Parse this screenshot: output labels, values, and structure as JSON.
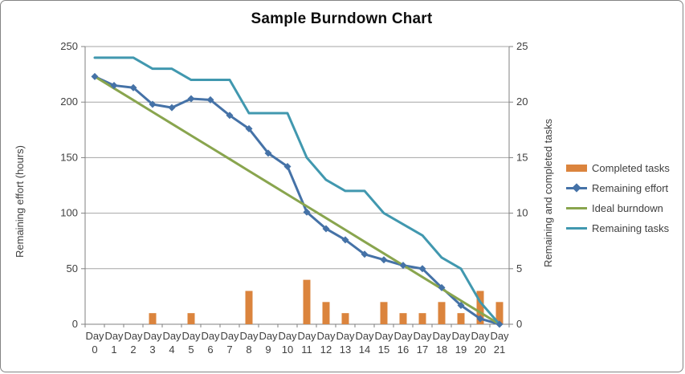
{
  "title": "Sample Burndown Chart",
  "colors": {
    "bar_orange": "#DB843D",
    "line_blue": "#4572A7",
    "line_green": "#89A54E",
    "line_teal": "#4198AF",
    "gridline": "#A6A6A6",
    "axis": "#808080",
    "text": "#3F3F3F"
  },
  "legend": [
    {
      "label": "Completed tasks",
      "swatch": "bar",
      "color": "#DB843D"
    },
    {
      "label": "Remaining effort",
      "swatch": "line-diamond",
      "color": "#4572A7"
    },
    {
      "label": "Ideal burndown",
      "swatch": "line",
      "color": "#89A54E"
    },
    {
      "label": "Remaining tasks",
      "swatch": "line",
      "color": "#4198AF"
    }
  ],
  "chart_data": {
    "type": "combo bar+line",
    "title": "Sample Burndown Chart",
    "grid": "horizontal",
    "legend_position": "right",
    "categories": [
      "Day 0",
      "Day 1",
      "Day 2",
      "Day 3",
      "Day 4",
      "Day 5",
      "Day 6",
      "Day 7",
      "Day 8",
      "Day 9",
      "Day 10",
      "Day 11",
      "Day 12",
      "Day 13",
      "Day 14",
      "Day 15",
      "Day 16",
      "Day 17",
      "Day 18",
      "Day 19",
      "Day 20",
      "Day 21"
    ],
    "left_axis": {
      "label": "Remaining effort (hours)",
      "min": 0,
      "max": 250,
      "ticks": [
        0,
        50,
        100,
        150,
        200,
        250
      ]
    },
    "right_axis": {
      "label": "Remaining and completed tasks",
      "min": 0,
      "max": 25,
      "ticks": [
        0,
        5,
        10,
        15,
        20,
        25
      ]
    },
    "series": [
      {
        "name": "Completed tasks",
        "type": "bar",
        "axis": "right",
        "color": "#DB843D",
        "values": [
          0,
          0,
          0,
          1,
          0,
          1,
          0,
          0,
          3,
          0,
          0,
          4,
          2,
          1,
          0,
          2,
          1,
          1,
          2,
          1,
          3,
          2
        ]
      },
      {
        "name": "Remaining effort",
        "type": "line",
        "marker": "diamond",
        "axis": "left",
        "color": "#4572A7",
        "values": [
          223,
          215,
          213,
          198,
          195,
          203,
          202,
          188,
          176,
          154,
          142,
          101,
          86,
          76,
          63,
          58,
          53,
          50,
          33,
          17,
          5,
          0
        ]
      },
      {
        "name": "Ideal burndown",
        "type": "line",
        "axis": "left",
        "color": "#89A54E",
        "values": [
          223,
          212.4,
          201.8,
          191.1,
          180.5,
          169.9,
          159.3,
          148.7,
          138.0,
          127.4,
          116.8,
          106.2,
          95.6,
          85.0,
          74.3,
          63.7,
          53.1,
          42.5,
          31.9,
          21.2,
          10.6,
          0
        ]
      },
      {
        "name": "Remaining tasks",
        "type": "line",
        "axis": "right",
        "color": "#4198AF",
        "values": [
          24,
          24,
          24,
          23,
          23,
          22,
          22,
          22,
          19,
          19,
          19,
          15,
          13,
          12,
          12,
          10,
          9,
          8,
          6,
          5,
          2,
          0
        ]
      }
    ]
  }
}
